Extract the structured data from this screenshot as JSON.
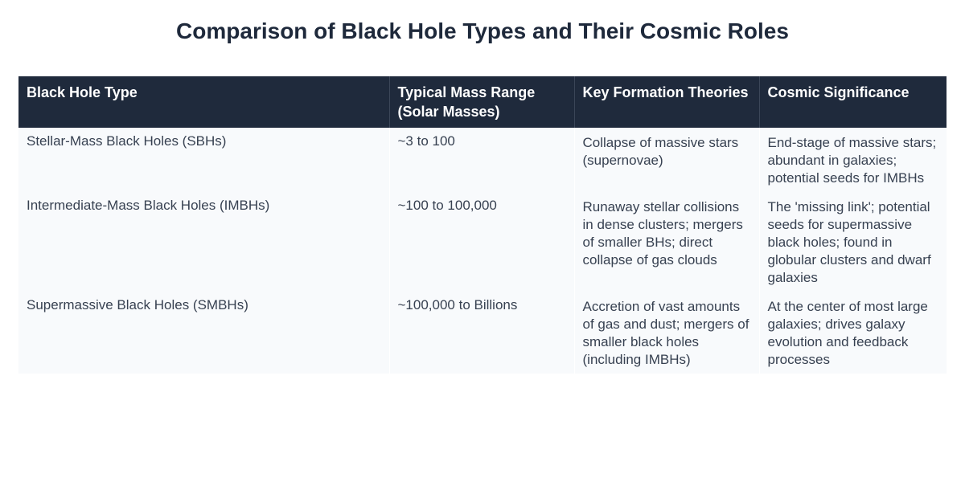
{
  "title": "Comparison of Black Hole Types and Their Cosmic Roles",
  "table": {
    "headers": [
      "Black Hole Type",
      "Typical Mass Range (Solar Masses)",
      "Key Formation Theories",
      "Cosmic Significance"
    ],
    "rows": [
      {
        "type": "Stellar-Mass Black Holes (SBHs)",
        "mass": "~3 to 100",
        "formation": "Collapse of massive stars (supernovae)",
        "significance": "End-stage of massive stars; abundant in galaxies; potential seeds for IMBHs"
      },
      {
        "type": "Intermediate-Mass Black Holes (IMBHs)",
        "mass": "~100 to 100,000",
        "formation": "Runaway stellar collisions in dense clusters; mergers of smaller BHs; direct collapse of gas clouds",
        "significance": "The 'missing link'; potential seeds for supermassive black holes; found in globular clusters and dwarf galaxies"
      },
      {
        "type": "Supermassive Black Holes (SMBHs)",
        "mass": "~100,000 to Billions",
        "formation": "Accretion of vast amounts of gas and dust; mergers of smaller black holes (including IMBHs)",
        "significance": "At the center of most large galaxies; drives galaxy evolution and feedback processes"
      }
    ]
  },
  "colors": {
    "header_bg": "#1f2a3c",
    "header_text": "#ffffff",
    "row_bg": "#f8fafc",
    "title_text": "#1e293b",
    "body_text": "#374151"
  }
}
